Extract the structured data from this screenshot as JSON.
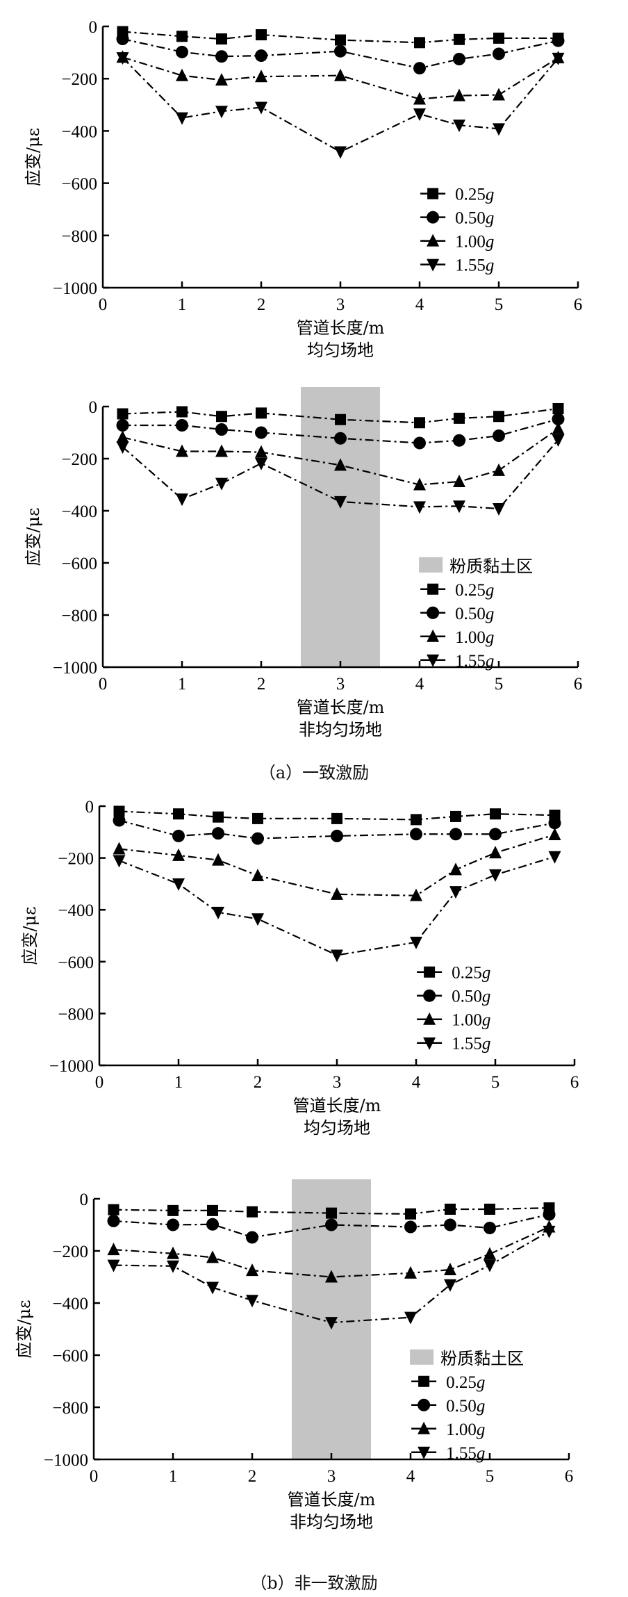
{
  "captions": {
    "a": "（a）一致激励",
    "b": "（b）非一致激励"
  },
  "chart_data": [
    {
      "id": "a-uniform",
      "type": "line",
      "title": "",
      "xlabel": "管道长度/m",
      "subtitle": "均匀场地",
      "ylabel": "应变/με",
      "xlim": [
        0,
        6
      ],
      "ylim": [
        -1000,
        0
      ],
      "xticks": [
        0,
        1,
        2,
        3,
        4,
        5,
        6
      ],
      "yticks": [
        0,
        -200,
        -400,
        -600,
        -800,
        -1000
      ],
      "x": [
        0.25,
        1,
        1.5,
        2,
        3,
        4,
        4.5,
        5,
        5.75
      ],
      "shaded_region": null,
      "legend_position": "bottom-right",
      "series": [
        {
          "name": "0.25g",
          "marker": "square",
          "values": [
            -20,
            -38,
            -48,
            -32,
            -52,
            -62,
            -50,
            -45,
            -45
          ]
        },
        {
          "name": "0.50g",
          "marker": "circle",
          "values": [
            -48,
            -98,
            -115,
            -112,
            -95,
            -160,
            -125,
            -105,
            -55
          ]
        },
        {
          "name": "1.00g",
          "marker": "triangle-up",
          "values": [
            -118,
            -188,
            -205,
            -192,
            -188,
            -278,
            -265,
            -262,
            -120
          ]
        },
        {
          "name": "1.55g",
          "marker": "triangle-down",
          "values": [
            -120,
            -350,
            -325,
            -310,
            -480,
            -335,
            -378,
            -392,
            -122
          ]
        }
      ]
    },
    {
      "id": "a-nonuniform",
      "type": "line",
      "title": "",
      "xlabel": "管道长度/m",
      "subtitle": "非均匀场地",
      "ylabel": "应变/με",
      "xlim": [
        0,
        6
      ],
      "ylim": [
        -1000,
        0
      ],
      "xticks": [
        0,
        1,
        2,
        3,
        4,
        5,
        6
      ],
      "yticks": [
        0,
        -200,
        -400,
        -600,
        -800,
        -1000
      ],
      "x": [
        0.25,
        1,
        1.5,
        2,
        3,
        4,
        4.5,
        5,
        5.75
      ],
      "shaded_region": {
        "label": "粉质黏土区",
        "x_range": [
          2.5,
          3.5
        ],
        "color": "#c4c4c4"
      },
      "legend_position": "bottom-right",
      "series": [
        {
          "name": "0.25g",
          "marker": "square",
          "values": [
            -28,
            -20,
            -38,
            -25,
            -50,
            -62,
            -45,
            -38,
            -8
          ]
        },
        {
          "name": "0.50g",
          "marker": "circle",
          "values": [
            -72,
            -72,
            -88,
            -100,
            -122,
            -140,
            -130,
            -112,
            -48
          ]
        },
        {
          "name": "1.00g",
          "marker": "triangle-up",
          "values": [
            -118,
            -172,
            -172,
            -175,
            -225,
            -300,
            -288,
            -245,
            -85
          ]
        },
        {
          "name": "1.55g",
          "marker": "triangle-down",
          "values": [
            -155,
            -355,
            -295,
            -218,
            -365,
            -385,
            -382,
            -392,
            -128
          ]
        }
      ]
    },
    {
      "id": "b-uniform",
      "type": "line",
      "title": "",
      "xlabel": "管道长度/m",
      "subtitle": "均匀场地",
      "ylabel": "应变/με",
      "xlim": [
        0,
        6
      ],
      "ylim": [
        -1000,
        0
      ],
      "xticks": [
        0,
        1,
        2,
        3,
        4,
        5,
        6
      ],
      "yticks": [
        0,
        -200,
        -400,
        -600,
        -800,
        -1000
      ],
      "x": [
        0.25,
        1,
        1.5,
        2,
        3,
        4,
        4.5,
        5,
        5.75
      ],
      "shaded_region": null,
      "legend_position": "bottom-right",
      "series": [
        {
          "name": "0.25g",
          "marker": "square",
          "values": [
            -20,
            -30,
            -42,
            -48,
            -48,
            -52,
            -40,
            -30,
            -35
          ]
        },
        {
          "name": "0.50g",
          "marker": "circle",
          "values": [
            -55,
            -115,
            -105,
            -125,
            -115,
            -108,
            -108,
            -108,
            -65
          ]
        },
        {
          "name": "1.00g",
          "marker": "triangle-up",
          "values": [
            -165,
            -190,
            -208,
            -268,
            -340,
            -345,
            -245,
            -180,
            -110
          ]
        },
        {
          "name": "1.55g",
          "marker": "triangle-down",
          "values": [
            -210,
            -300,
            -410,
            -435,
            -575,
            -525,
            -330,
            -265,
            -195
          ]
        }
      ]
    },
    {
      "id": "b-nonuniform",
      "type": "line",
      "title": "",
      "xlabel": "管道长度/m",
      "subtitle": "非均匀场地",
      "ylabel": "应变/με",
      "xlim": [
        0,
        6
      ],
      "ylim": [
        -1000,
        0
      ],
      "xticks": [
        0,
        1,
        2,
        3,
        4,
        5,
        6
      ],
      "yticks": [
        0,
        -200,
        -400,
        -600,
        -800,
        -1000
      ],
      "x": [
        0.25,
        1,
        1.5,
        2,
        3,
        4,
        4.5,
        5,
        5.75
      ],
      "shaded_region": {
        "label": "粉质黏土区",
        "x_range": [
          2.5,
          3.5
        ],
        "color": "#c4c4c4"
      },
      "legend_position": "bottom-right",
      "series": [
        {
          "name": "0.25g",
          "marker": "square",
          "values": [
            -42,
            -45,
            -45,
            -50,
            -55,
            -58,
            -40,
            -40,
            -35
          ]
        },
        {
          "name": "0.50g",
          "marker": "circle",
          "values": [
            -85,
            -100,
            -98,
            -148,
            -100,
            -108,
            -100,
            -112,
            -60
          ]
        },
        {
          "name": "1.00g",
          "marker": "triangle-up",
          "values": [
            -195,
            -210,
            -225,
            -275,
            -300,
            -285,
            -272,
            -212,
            -108
          ]
        },
        {
          "name": "1.55g",
          "marker": "triangle-down",
          "values": [
            -255,
            -258,
            -340,
            -390,
            -475,
            -455,
            -330,
            -255,
            -125
          ]
        }
      ]
    }
  ]
}
